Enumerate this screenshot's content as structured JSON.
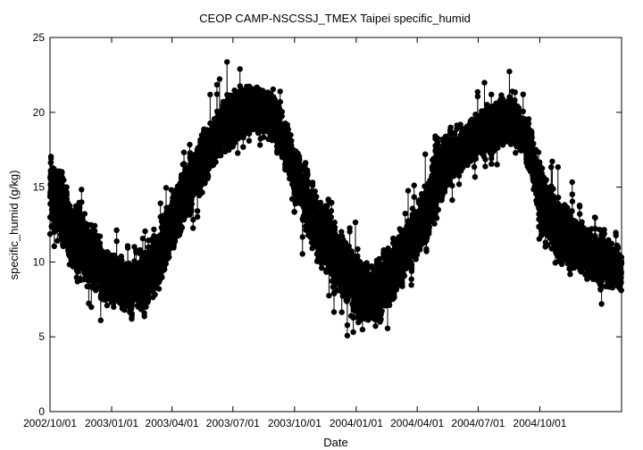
{
  "chart_data": {
    "type": "scatter",
    "title": "CEOP CAMP-NSCSSJ_TMEX Taipei  specific_humid",
    "xlabel": "Date",
    "ylabel": "specific_humid (g/kg)",
    "ylim": [
      0,
      25
    ],
    "xlim": [
      "2002-10-01",
      "2005-01-31"
    ],
    "yticks": [
      0,
      5,
      10,
      15,
      20,
      25
    ],
    "xticks": [
      "2002/10/01",
      "2003/01/01",
      "2003/04/01",
      "2003/07/01",
      "2003/10/01",
      "2004/01/01",
      "2004/04/01",
      "2004/07/01",
      "2004/10/01"
    ],
    "grid": false,
    "series": [
      {
        "color": "#000000",
        "marker": "filled-circle",
        "connected": true,
        "x": [
          "2002-10-01",
          "2002-10-16",
          "2002-11-01",
          "2002-11-16",
          "2002-12-01",
          "2002-12-16",
          "2003-01-01",
          "2003-01-16",
          "2003-02-01",
          "2003-02-16",
          "2003-03-01",
          "2003-03-16",
          "2003-04-01",
          "2003-04-16",
          "2003-05-01",
          "2003-05-16",
          "2003-06-01",
          "2003-06-16",
          "2003-07-01",
          "2003-07-16",
          "2003-08-01",
          "2003-08-16",
          "2003-09-01",
          "2003-09-16",
          "2003-10-01",
          "2003-10-16",
          "2003-11-01",
          "2003-11-16",
          "2003-12-01",
          "2003-12-16",
          "2004-01-01",
          "2004-01-16",
          "2004-02-01",
          "2004-02-16",
          "2004-03-01",
          "2004-03-16",
          "2004-04-01",
          "2004-04-16",
          "2004-05-01",
          "2004-05-16",
          "2004-06-01",
          "2004-06-16",
          "2004-07-01",
          "2004-07-16",
          "2004-08-01",
          "2004-08-16",
          "2004-09-01",
          "2004-09-16",
          "2004-10-01",
          "2004-10-16",
          "2004-11-01",
          "2004-11-16",
          "2004-12-01",
          "2004-12-16",
          "2005-01-01",
          "2005-01-16",
          "2005-01-31"
        ],
        "y": [
          14.5,
          14.0,
          12.0,
          11.0,
          10.5,
          9.5,
          9.0,
          8.5,
          8.3,
          8.5,
          9.5,
          10.5,
          12.5,
          14.0,
          15.5,
          16.5,
          18.0,
          19.0,
          19.5,
          20.0,
          20.3,
          20.0,
          19.5,
          18.0,
          16.0,
          14.5,
          12.5,
          11.5,
          10.5,
          9.5,
          8.5,
          7.8,
          8.0,
          9.0,
          10.0,
          11.0,
          12.0,
          13.5,
          15.5,
          16.5,
          17.5,
          18.0,
          18.5,
          19.0,
          19.3,
          19.5,
          19.0,
          17.5,
          14.5,
          13.0,
          12.0,
          11.5,
          11.0,
          10.5,
          10.0,
          9.5,
          9.5
        ],
        "ymin": [
          10.5,
          9.0,
          7.0,
          6.5,
          5.8,
          5.5,
          5.2,
          5.0,
          5.0,
          5.5,
          6.0,
          7.0,
          8.5,
          10.0,
          11.5,
          13.0,
          15.5,
          16.5,
          17.0,
          17.2,
          17.5,
          17.0,
          16.5,
          15.0,
          12.0,
          10.0,
          8.0,
          7.0,
          6.0,
          5.0,
          4.5,
          4.0,
          4.5,
          5.5,
          6.5,
          7.0,
          8.0,
          9.0,
          11.0,
          13.0,
          15.0,
          15.5,
          15.5,
          16.0,
          16.5,
          17.0,
          16.0,
          13.5,
          10.5,
          9.5,
          9.0,
          8.5,
          8.0,
          7.5,
          7.0,
          6.8,
          6.5
        ],
        "ymax": [
          19.2,
          17.5,
          15.5,
          16.0,
          14.5,
          13.0,
          12.5,
          12.0,
          11.5,
          12.5,
          14.0,
          14.5,
          16.5,
          18.0,
          19.0,
          20.5,
          22.0,
          23.0,
          24.8,
          23.5,
          23.0,
          22.5,
          22.5,
          21.0,
          19.5,
          18.0,
          16.5,
          15.5,
          14.0,
          13.0,
          12.8,
          12.0,
          12.5,
          13.0,
          14.5,
          15.0,
          16.0,
          17.5,
          19.5,
          20.5,
          21.0,
          21.5,
          22.0,
          22.5,
          22.5,
          23.0,
          22.0,
          20.0,
          18.5,
          17.5,
          17.0,
          16.5,
          15.0,
          14.0,
          13.5,
          13.0,
          12.5
        ]
      }
    ]
  }
}
